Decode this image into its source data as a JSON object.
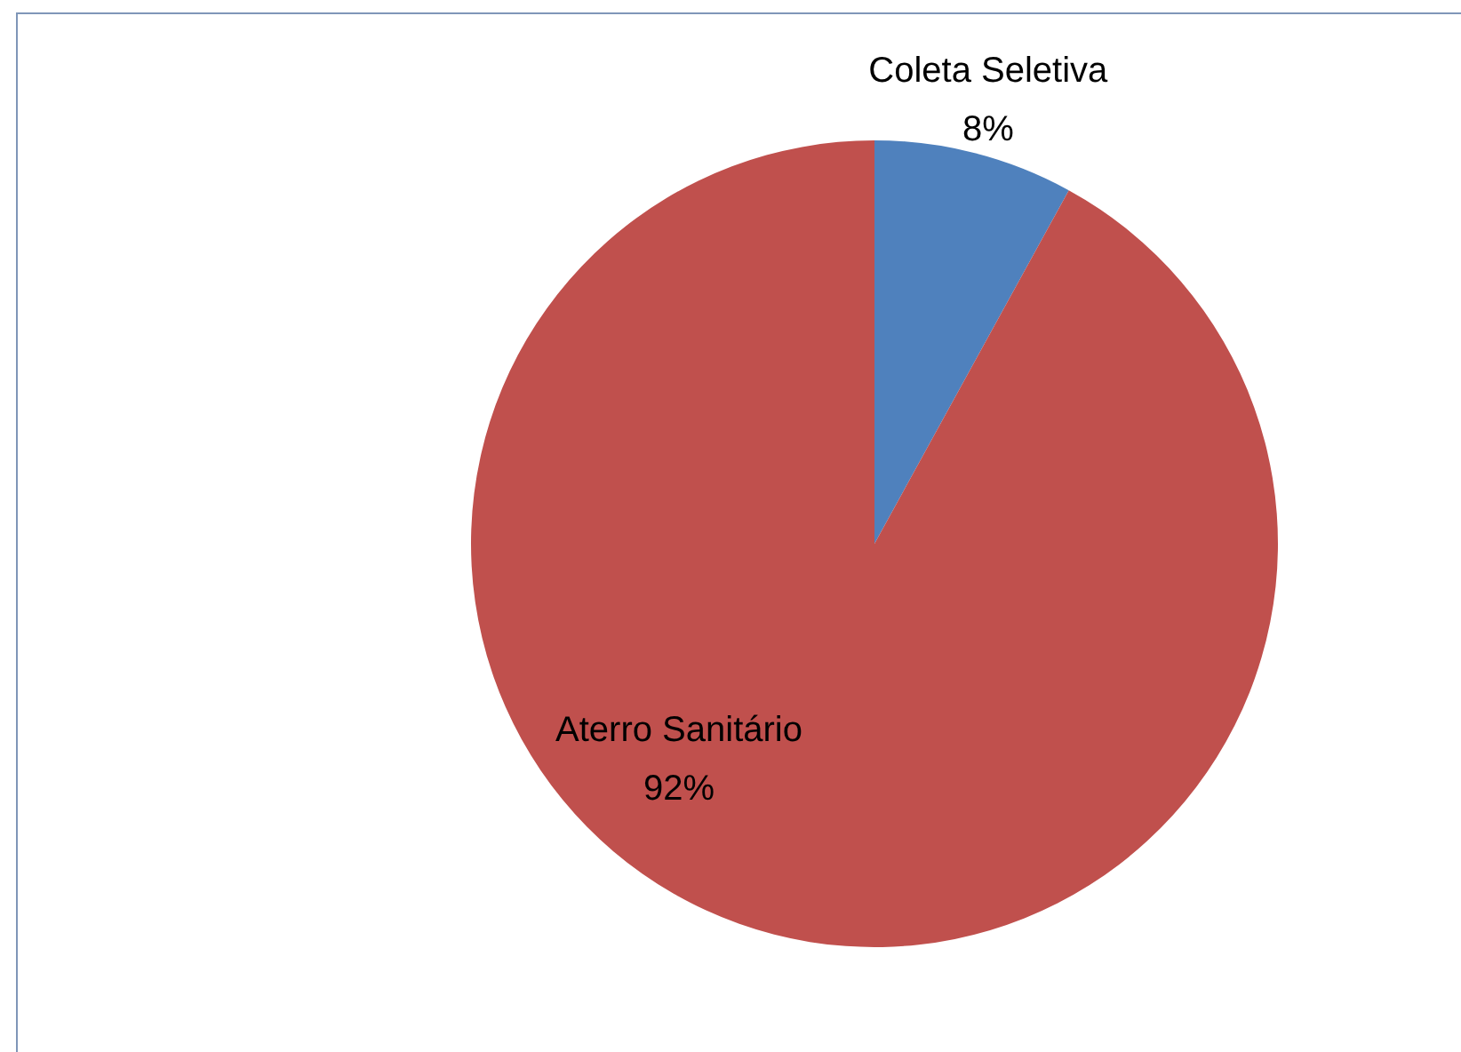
{
  "chart_data": {
    "type": "pie",
    "categories": [
      "Coleta Seletiva",
      "Aterro Sanitário"
    ],
    "values": [
      8,
      92
    ],
    "colors": [
      "#4f81bd",
      "#c0504d"
    ],
    "value_labels": [
      "8%",
      "92%"
    ],
    "legend": false
  }
}
